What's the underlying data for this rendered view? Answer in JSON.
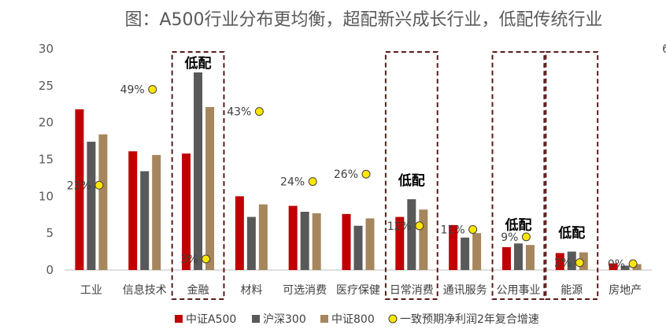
{
  "chart_data": {
    "type": "bar",
    "title": "图：A500行业分布更均衡，超配新兴成长行业，低配传统行业",
    "categories": [
      "工业",
      "信息技术",
      "金融",
      "材料",
      "可选消费",
      "医疗保健",
      "日常消费",
      "通讯服务",
      "公用事业",
      "能源",
      "房地产"
    ],
    "ylim": [
      0,
      30
    ],
    "y_ticks": [
      "0",
      "5",
      "10",
      "15",
      "20",
      "25",
      "30"
    ],
    "y2_ticks": [
      "6"
    ],
    "series": [
      {
        "name": "中证A500",
        "color": "#C00000",
        "values": [
          21.8,
          16.1,
          15.8,
          10.0,
          8.7,
          7.6,
          7.2,
          6.1,
          3.1,
          2.3,
          0.9
        ]
      },
      {
        "name": "沪深300",
        "color": "#595959",
        "values": [
          17.4,
          13.4,
          26.8,
          7.2,
          7.9,
          6.0,
          9.6,
          4.4,
          3.6,
          2.5,
          0.6
        ]
      },
      {
        "name": "中证800",
        "color": "#A6865C",
        "values": [
          18.4,
          15.6,
          22.1,
          8.9,
          7.7,
          7.0,
          8.2,
          5.0,
          3.4,
          2.4,
          0.8
        ]
      }
    ],
    "growth_series": {
      "name": "一致预期净利润2年复合增速",
      "color": "#FFE600",
      "values": [
        0.23,
        0.49,
        0.03,
        0.43,
        0.24,
        0.26,
        0.12,
        0.11,
        0.09,
        0.02,
        0.0
      ],
      "labels": [
        "23%",
        "49%",
        "3%",
        "43%",
        "24%",
        "26%",
        "12%",
        "11%",
        "9%",
        "2%",
        "0%"
      ]
    },
    "highlight_categories": [
      "金融",
      "日常消费",
      "公用事业",
      "能源"
    ],
    "highlight_label": "低配",
    "legend_position": "bottom",
    "grid": false
  }
}
